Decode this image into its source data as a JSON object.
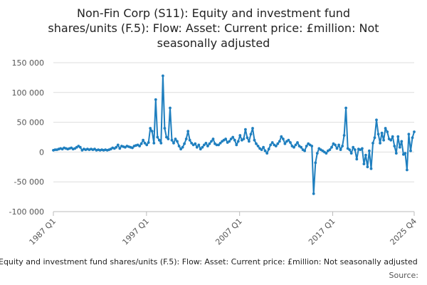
{
  "chart_data": {
    "type": "line",
    "title_lines": [
      "Non-Fin Corp (S11): Equity and investment fund",
      "shares/units (F.5): Flow: Asset: Current price: £million: Not",
      "seasonally adjusted"
    ],
    "xlabel": "",
    "ylabel": "",
    "x_start": "1987 Q1",
    "x_end": "2025 Q4",
    "x_ticks": [
      "1987 Q1",
      "1997 Q1",
      "2007 Q1",
      "2017 Q1",
      "2025 Q4"
    ],
    "y_ticks": [
      150000,
      100000,
      50000,
      0,
      -50000,
      -100000
    ],
    "y_tick_labels": [
      "150 000",
      "100 000",
      "50 000",
      "0",
      "-50 000",
      "-100 000"
    ],
    "ylim": [
      -100000,
      150000
    ],
    "grid": true,
    "series_color": "#1f7fbf",
    "series": [
      {
        "values": [
          3000,
          4000,
          4000,
          5000,
          6000,
          5000,
          7000,
          6000,
          5000,
          6000,
          7000,
          5000,
          6000,
          8000,
          10000,
          8000,
          3000,
          5000,
          4000,
          5000,
          4000,
          5000,
          4000,
          5000,
          3000,
          4000,
          3000,
          4000,
          3000,
          4000,
          3000,
          4000,
          5000,
          7000,
          6000,
          8000,
          12000,
          6000,
          10000,
          9000,
          8000,
          10000,
          9000,
          8000,
          7000,
          10000,
          11000,
          12000,
          10000,
          14000,
          20000,
          15000,
          12000,
          16000,
          40000,
          35000,
          15000,
          88000,
          25000,
          20000,
          15000,
          128000,
          40000,
          25000,
          22000,
          74000,
          20000,
          15000,
          22000,
          18000,
          10000,
          5000,
          8000,
          14000,
          22000,
          35000,
          20000,
          15000,
          12000,
          14000,
          8000,
          12000,
          5000,
          8000,
          12000,
          15000,
          10000,
          14000,
          18000,
          22000,
          14000,
          12000,
          12000,
          15000,
          18000,
          20000,
          22000,
          16000,
          18000,
          22000,
          25000,
          20000,
          12000,
          18000,
          28000,
          20000,
          22000,
          38000,
          24000,
          18000,
          30000,
          40000,
          20000,
          14000,
          10000,
          6000,
          4000,
          8000,
          2000,
          -2000,
          5000,
          12000,
          16000,
          12000,
          10000,
          14000,
          18000,
          26000,
          22000,
          14000,
          18000,
          20000,
          16000,
          10000,
          8000,
          12000,
          16000,
          10000,
          8000,
          4000,
          2000,
          10000,
          14000,
          12000,
          10000,
          -70000,
          -18000,
          -2000,
          6000,
          4000,
          2000,
          0,
          -2000,
          2000,
          4000,
          8000,
          14000,
          12000,
          6000,
          12000,
          4000,
          10000,
          28000,
          74000,
          6000,
          4000,
          -2000,
          8000,
          4000,
          -12000,
          5000,
          4000,
          6000,
          -20000,
          -5000,
          -25000,
          2000,
          -28000,
          15000,
          24000,
          54000,
          30000,
          15000,
          32000,
          20000,
          40000,
          34000,
          22000,
          20000,
          26000,
          10000,
          -2000,
          26000,
          8000,
          18000,
          -4000,
          -2000,
          -30000,
          30000,
          2000,
          24000,
          34000
        ]
      }
    ],
    "caption": "Equity and investment fund shares/units (F.5): Flow: Asset: Current price: £million: Not seasonally adjusted",
    "source": "Source:"
  }
}
